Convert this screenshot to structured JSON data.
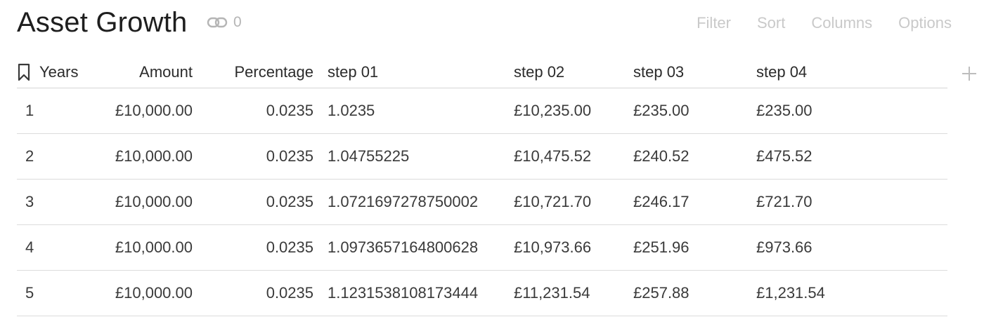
{
  "header": {
    "title": "Asset Growth",
    "link_count": "0",
    "toolbar": [
      "Filter",
      "Sort",
      "Columns",
      "Options"
    ]
  },
  "table": {
    "columns": [
      "Years",
      "Amount",
      "Percentage",
      "step 01",
      "step 02",
      "step 03",
      "step 04"
    ],
    "rows": [
      [
        "1",
        "£10,000.00",
        "0.0235",
        "1.0235",
        "£10,235.00",
        "£235.00",
        "£235.00"
      ],
      [
        "2",
        "£10,000.00",
        "0.0235",
        "1.04755225",
        "£10,475.52",
        "£240.52",
        "£475.52"
      ],
      [
        "3",
        "£10,000.00",
        "0.0235",
        "1.0721697278750002",
        "£10,721.70",
        "£246.17",
        "£721.70"
      ],
      [
        "4",
        "£10,000.00",
        "0.0235",
        "1.0973657164800628",
        "£10,973.66",
        "£251.96",
        "£973.66"
      ],
      [
        "5",
        "£10,000.00",
        "0.0235",
        "1.1231538108173444",
        "£11,231.54",
        "£257.88",
        "£1,231.54"
      ]
    ]
  },
  "icons": {
    "link": "link-icon",
    "bookmark": "bookmark-icon",
    "add_column": "plus-icon"
  },
  "colors": {
    "title": "#1e1e1e",
    "muted": "#c9c9c9",
    "border": "#d5d5d5"
  }
}
